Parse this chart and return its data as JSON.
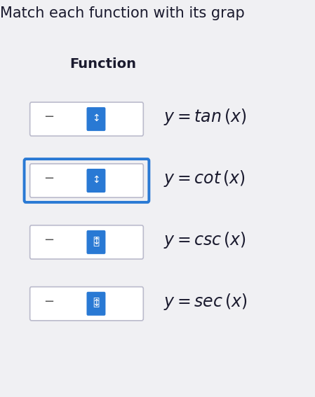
{
  "title": "Match each function with its grap",
  "heading": "Function",
  "background_color": "#f0f0f3",
  "functions": [
    {
      "label": "y = tan\\,(x)",
      "has_outer_border": false,
      "icon_filled": false
    },
    {
      "label": "y = cot\\,(x)",
      "has_outer_border": true,
      "icon_filled": false
    },
    {
      "label": "y = csc\\,(x)",
      "has_outer_border": false,
      "icon_filled": true
    },
    {
      "label": "y = sec\\,(x)",
      "has_outer_border": false,
      "icon_filled": true
    }
  ],
  "icon_color": "#2979d4",
  "outer_border_color": "#2979d4",
  "dash_color": "#555555",
  "text_color": "#1a1a2e",
  "heading_color": "#1a1a2e",
  "title_color": "#1a1a2e",
  "title_fontsize": 15,
  "heading_fontsize": 14,
  "formula_fontsize": 17,
  "figsize": [
    4.49,
    5.67
  ],
  "dpi": 100
}
